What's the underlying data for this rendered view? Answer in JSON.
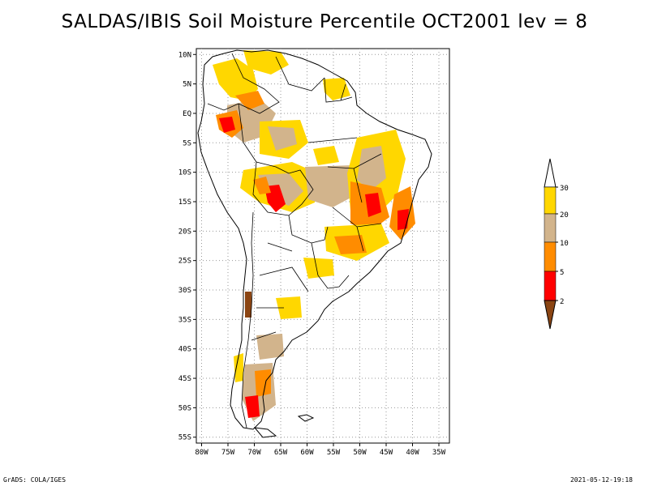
{
  "title": "SALDAS/IBIS Soil Moisture Percentile OCT2001 lev = 8",
  "map": {
    "lat_labels": [
      "10N",
      "5N",
      "EQ",
      "5S",
      "10S",
      "15S",
      "20S",
      "25S",
      "30S",
      "35S",
      "40S",
      "45S",
      "50S",
      "55S"
    ],
    "lon_labels": [
      "80W",
      "75W",
      "70W",
      "65W",
      "60W",
      "55W",
      "50W",
      "45W",
      "40W",
      "35W"
    ],
    "lat_range": [
      -56,
      11
    ],
    "lon_range": [
      -81,
      -33
    ],
    "grid": "dotted"
  },
  "legend": {
    "levels": [
      "30",
      "20",
      "10",
      "5",
      "2"
    ],
    "colors": {
      "above_30": "#ffffff",
      "20_30": "#ffd700",
      "10_20": "#d2b48c",
      "5_10": "#ff8c00",
      "2_5": "#ff0000",
      "below_2": "#8b4513"
    }
  },
  "footer": {
    "left": "GrADS: COLA/IGES",
    "right": "2021-05-12-19:18"
  }
}
